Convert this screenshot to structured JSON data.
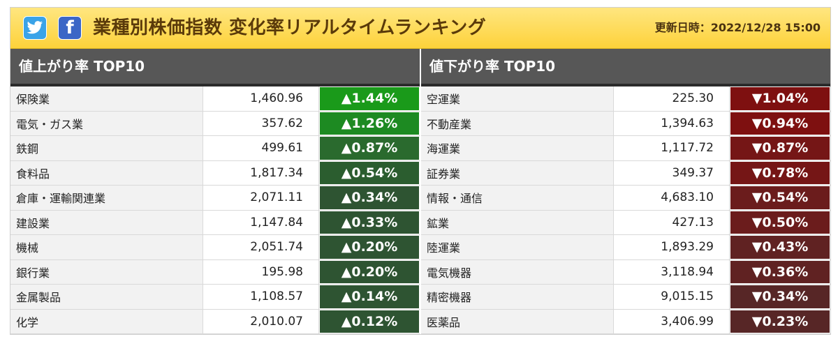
{
  "header": {
    "title": "業種別株価指数 変化率リアルタイムランキング",
    "updated": "更新日時：2022/12/28 15:00",
    "twitter_icon": "twitter-icon",
    "facebook_icon": "facebook-icon"
  },
  "gainers": {
    "title": "値上がり率 TOP10",
    "rows": [
      {
        "name": "保険業",
        "value": "1,460.96",
        "change": "▲1.44%"
      },
      {
        "name": "電気・ガス業",
        "value": "357.62",
        "change": "▲1.26%"
      },
      {
        "name": "鉄鋼",
        "value": "499.61",
        "change": "▲0.87%"
      },
      {
        "name": "食料品",
        "value": "1,817.34",
        "change": "▲0.54%"
      },
      {
        "name": "倉庫・運輸関連業",
        "value": "2,071.11",
        "change": "▲0.34%"
      },
      {
        "name": "建設業",
        "value": "1,147.84",
        "change": "▲0.33%"
      },
      {
        "name": "機械",
        "value": "2,051.74",
        "change": "▲0.20%"
      },
      {
        "name": "銀行業",
        "value": "195.98",
        "change": "▲0.20%"
      },
      {
        "name": "金属製品",
        "value": "1,108.57",
        "change": "▲0.14%"
      },
      {
        "name": "化学",
        "value": "2,010.07",
        "change": "▲0.12%"
      }
    ]
  },
  "losers": {
    "title": "値下がり率 TOP10",
    "rows": [
      {
        "name": "空運業",
        "value": "225.30",
        "change": "▼1.04%"
      },
      {
        "name": "不動産業",
        "value": "1,394.63",
        "change": "▼0.94%"
      },
      {
        "name": "海運業",
        "value": "1,117.72",
        "change": "▼0.87%"
      },
      {
        "name": "証券業",
        "value": "349.37",
        "change": "▼0.78%"
      },
      {
        "name": "情報・通信",
        "value": "4,683.10",
        "change": "▼0.54%"
      },
      {
        "name": "鉱業",
        "value": "427.13",
        "change": "▼0.50%"
      },
      {
        "name": "陸運業",
        "value": "1,893.29",
        "change": "▼0.43%"
      },
      {
        "name": "電気機器",
        "value": "3,118.94",
        "change": "▼0.36%"
      },
      {
        "name": "精密機器",
        "value": "9,015.15",
        "change": "▼0.34%"
      },
      {
        "name": "医薬品",
        "value": "3,406.99",
        "change": "▼0.23%"
      }
    ]
  }
}
